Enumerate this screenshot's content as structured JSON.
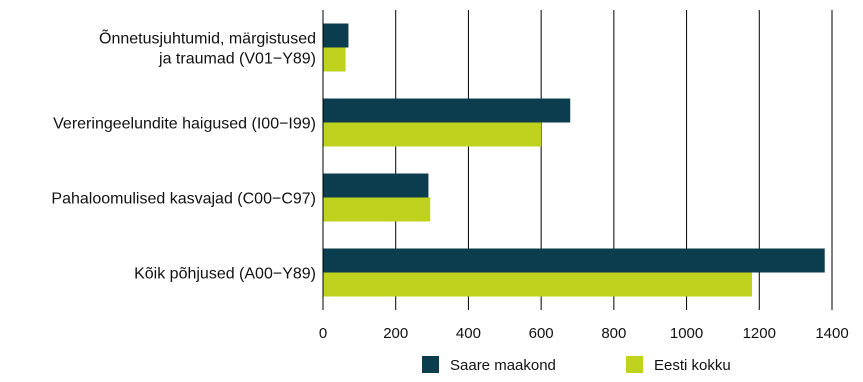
{
  "chart_data": {
    "type": "bar",
    "orientation": "horizontal",
    "categories": [
      [
        "Õnnetusjuhtumid, märgistused",
        "ja traumad (V01−Y89)"
      ],
      [
        "Vereringeelundite haigused (I00−I99)"
      ],
      [
        "Pahaloomulised kasvajad (C00−C97)"
      ],
      [
        "Kõik põhjused (A00−Y89)"
      ]
    ],
    "series": [
      {
        "name": "Saare maakond",
        "color": "#0c3d4f",
        "values": [
          70,
          680,
          290,
          1380
        ]
      },
      {
        "name": "Eesti kokku",
        "color": "#bed21e",
        "values": [
          62,
          600,
          295,
          1180
        ]
      }
    ],
    "xlim": [
      0,
      1400
    ],
    "xticks": [
      "0",
      "200",
      "400",
      "600",
      "800",
      "1000",
      "1200",
      "1400"
    ],
    "grid": "vertical",
    "legend": "bottom"
  }
}
